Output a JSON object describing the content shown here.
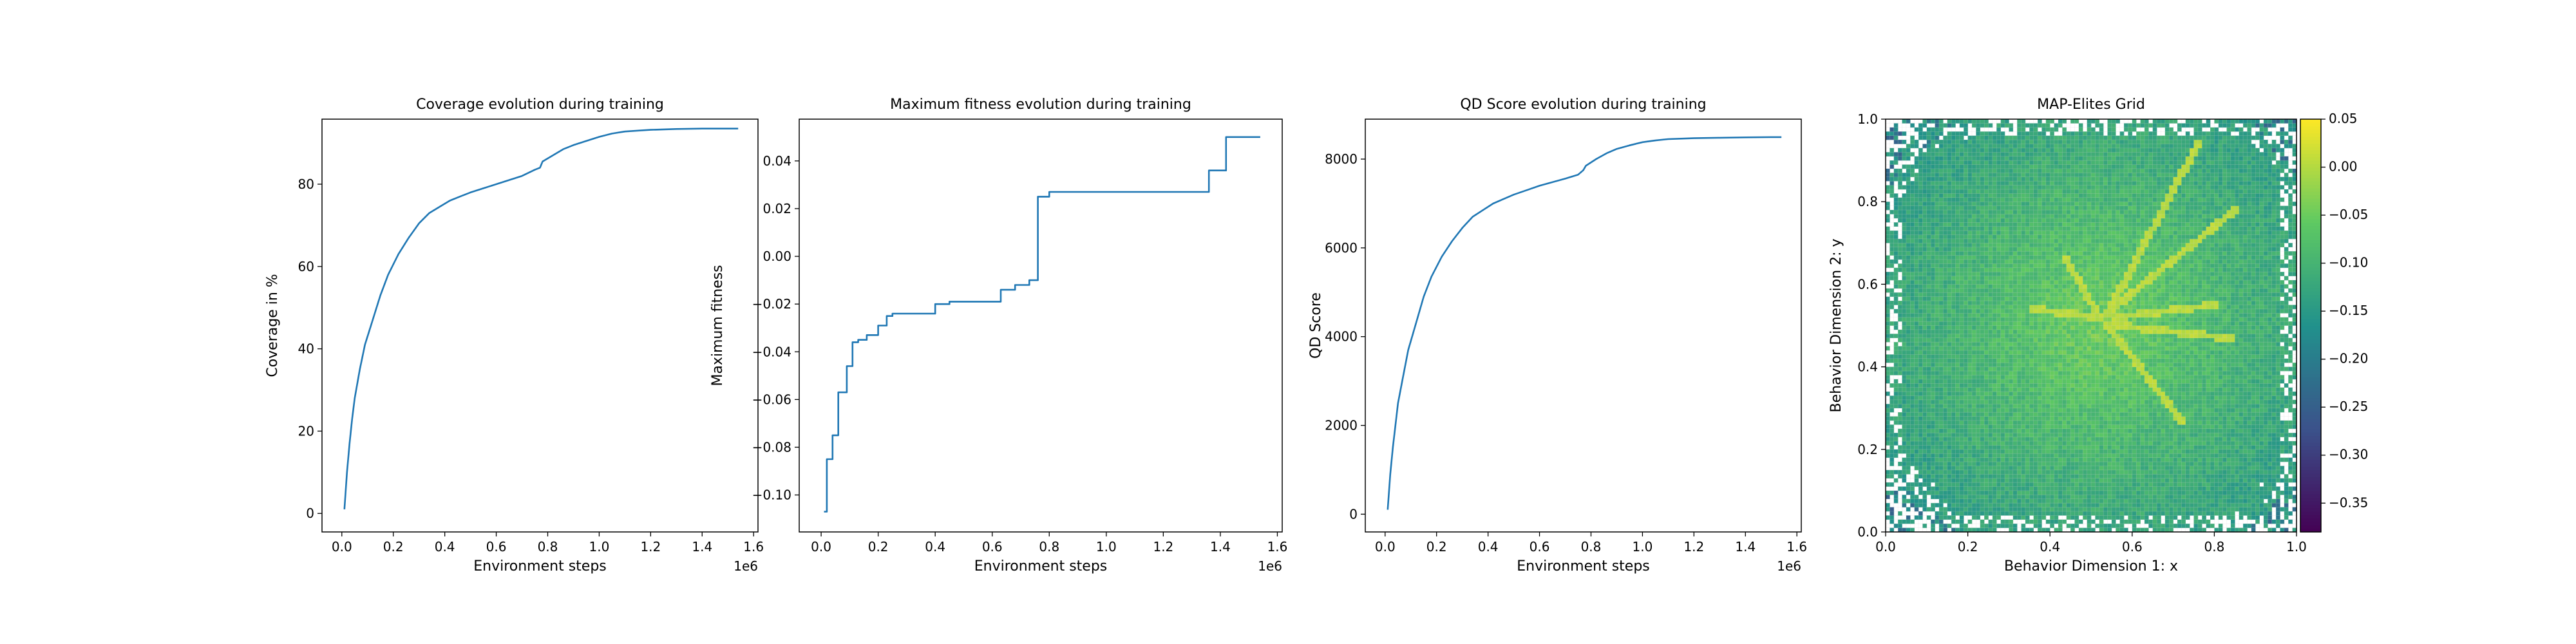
{
  "chart_data": [
    {
      "type": "line",
      "title": "Coverage evolution during training",
      "xlabel": "Environment steps",
      "ylabel": "Coverage in %",
      "xlim": [
        -0.077,
        1.617
      ],
      "ylim": [
        -4.5,
        95.8
      ],
      "xticks": [
        0,
        0.2,
        0.4,
        0.6,
        0.8,
        1.0,
        1.2,
        1.4,
        1.6
      ],
      "xtick_labels": [
        "0.0",
        "0.2",
        "0.4",
        "0.6",
        "0.8",
        "1.0",
        "1.2",
        "1.4",
        "1.6"
      ],
      "yticks": [
        0,
        20,
        40,
        60,
        80
      ],
      "ytick_labels": [
        "0",
        "20",
        "40",
        "60",
        "80"
      ],
      "x_offset_label": "1e6",
      "color": "#1f77b4",
      "x": [
        0.01,
        0.02,
        0.03,
        0.04,
        0.05,
        0.07,
        0.09,
        0.12,
        0.15,
        0.18,
        0.22,
        0.26,
        0.3,
        0.34,
        0.38,
        0.42,
        0.46,
        0.5,
        0.55,
        0.6,
        0.65,
        0.7,
        0.75,
        0.77,
        0.78,
        0.82,
        0.86,
        0.9,
        0.95,
        1.0,
        1.05,
        1.1,
        1.2,
        1.3,
        1.4,
        1.5,
        1.54
      ],
      "y": [
        1,
        10,
        17,
        23,
        28,
        35,
        41,
        47,
        53,
        58,
        63,
        67,
        70.5,
        73,
        74.5,
        76,
        77,
        78,
        79,
        80,
        81,
        82,
        83.5,
        84,
        85.5,
        87,
        88.5,
        89.5,
        90.5,
        91.5,
        92.3,
        92.8,
        93.2,
        93.4,
        93.5,
        93.5,
        93.5
      ]
    },
    {
      "type": "line",
      "title": "Maximum fitness evolution during training",
      "xlabel": "Environment steps",
      "ylabel": "Maximum fitness",
      "xlim": [
        -0.077,
        1.617
      ],
      "ylim": [
        -0.1155,
        0.0575
      ],
      "xticks": [
        0,
        0.2,
        0.4,
        0.6,
        0.8,
        1.0,
        1.2,
        1.4,
        1.6
      ],
      "xtick_labels": [
        "0.0",
        "0.2",
        "0.4",
        "0.6",
        "0.8",
        "1.0",
        "1.2",
        "1.4",
        "1.6"
      ],
      "yticks": [
        -0.1,
        -0.08,
        -0.06,
        -0.04,
        -0.02,
        0.0,
        0.02,
        0.04
      ],
      "ytick_labels": [
        "−0.10",
        "−0.08",
        "−0.06",
        "−0.04",
        "−0.02",
        "0.00",
        "0.02",
        "0.04"
      ],
      "x_offset_label": "1e6",
      "color": "#1f77b4",
      "x": [
        0.01,
        0.02,
        0.02,
        0.04,
        0.04,
        0.06,
        0.06,
        0.09,
        0.09,
        0.11,
        0.11,
        0.13,
        0.13,
        0.16,
        0.16,
        0.2,
        0.2,
        0.23,
        0.23,
        0.25,
        0.25,
        0.4,
        0.4,
        0.45,
        0.45,
        0.63,
        0.63,
        0.68,
        0.68,
        0.73,
        0.73,
        0.76,
        0.76,
        0.8,
        0.8,
        1.36,
        1.36,
        1.42,
        1.42,
        1.54
      ],
      "y": [
        -0.107,
        -0.107,
        -0.085,
        -0.085,
        -0.075,
        -0.075,
        -0.057,
        -0.057,
        -0.046,
        -0.046,
        -0.036,
        -0.036,
        -0.035,
        -0.035,
        -0.033,
        -0.033,
        -0.029,
        -0.029,
        -0.025,
        -0.025,
        -0.024,
        -0.024,
        -0.02,
        -0.02,
        -0.019,
        -0.019,
        -0.014,
        -0.014,
        -0.012,
        -0.012,
        -0.01,
        -0.01,
        0.025,
        0.025,
        0.027,
        0.027,
        0.036,
        0.036,
        0.05,
        0.05
      ]
    },
    {
      "type": "line",
      "title": "QD Score evolution during training",
      "xlabel": "Environment steps",
      "ylabel": "QD Score",
      "xlim": [
        -0.077,
        1.617
      ],
      "ylim": [
        -400,
        8900
      ],
      "xticks": [
        0,
        0.2,
        0.4,
        0.6,
        0.8,
        1.0,
        1.2,
        1.4,
        1.6
      ],
      "xtick_labels": [
        "0.0",
        "0.2",
        "0.4",
        "0.6",
        "0.8",
        "1.0",
        "1.2",
        "1.4",
        "1.6"
      ],
      "yticks": [
        0,
        2000,
        4000,
        6000,
        8000
      ],
      "ytick_labels": [
        "0",
        "2000",
        "4000",
        "6000",
        "8000"
      ],
      "x_offset_label": "1e6",
      "color": "#1f77b4",
      "x": [
        0.01,
        0.02,
        0.03,
        0.04,
        0.05,
        0.07,
        0.09,
        0.12,
        0.15,
        0.18,
        0.22,
        0.26,
        0.3,
        0.34,
        0.38,
        0.42,
        0.46,
        0.5,
        0.55,
        0.6,
        0.65,
        0.7,
        0.75,
        0.77,
        0.78,
        0.82,
        0.86,
        0.9,
        0.95,
        1.0,
        1.05,
        1.1,
        1.2,
        1.3,
        1.4,
        1.5,
        1.54
      ],
      "y": [
        100,
        900,
        1500,
        2000,
        2500,
        3100,
        3700,
        4300,
        4900,
        5350,
        5800,
        6150,
        6450,
        6700,
        6850,
        7000,
        7100,
        7200,
        7300,
        7400,
        7480,
        7560,
        7650,
        7750,
        7850,
        8000,
        8130,
        8230,
        8310,
        8380,
        8420,
        8450,
        8470,
        8480,
        8490,
        8495,
        8495
      ]
    },
    {
      "type": "heatmap",
      "title": "MAP-Elites Grid",
      "xlabel": "Behavior Dimension 1: x",
      "ylabel": "Behavior Dimension 2: y",
      "xlim": [
        0,
        1
      ],
      "ylim": [
        0,
        1
      ],
      "xticks": [
        0.0,
        0.2,
        0.4,
        0.6,
        0.8,
        1.0
      ],
      "xtick_labels": [
        "0.0",
        "0.2",
        "0.4",
        "0.6",
        "0.8",
        "1.0"
      ],
      "yticks": [
        0.0,
        0.2,
        0.4,
        0.6,
        0.8,
        1.0
      ],
      "ytick_labels": [
        "0.0",
        "0.2",
        "0.4",
        "0.6",
        "0.8",
        "1.0"
      ],
      "colorbar_range": [
        -0.38,
        0.05
      ],
      "colorbar_ticks": [
        0.05,
        0.0,
        -0.05,
        -0.1,
        -0.15,
        -0.2,
        -0.25,
        -0.3,
        -0.35
      ],
      "colorbar_tick_labels": [
        "0.05",
        "0.00",
        "−0.05",
        "−0.10",
        "−0.15",
        "−0.20",
        "−0.25",
        "−0.30",
        "−0.35"
      ],
      "colormap": "viridis",
      "grid_cells": 100,
      "rays": [
        {
          "from": [
            0.54,
            0.53
          ],
          "to": [
            0.76,
            0.94
          ]
        },
        {
          "from": [
            0.54,
            0.53
          ],
          "to": [
            0.85,
            0.78
          ]
        },
        {
          "from": [
            0.56,
            0.52
          ],
          "to": [
            0.8,
            0.55
          ]
        },
        {
          "from": [
            0.56,
            0.5
          ],
          "to": [
            0.84,
            0.47
          ]
        },
        {
          "from": [
            0.54,
            0.5
          ],
          "to": [
            0.72,
            0.27
          ]
        },
        {
          "from": [
            0.52,
            0.52
          ],
          "to": [
            0.44,
            0.66
          ]
        },
        {
          "from": [
            0.52,
            0.52
          ],
          "to": [
            0.36,
            0.54
          ]
        }
      ]
    }
  ]
}
